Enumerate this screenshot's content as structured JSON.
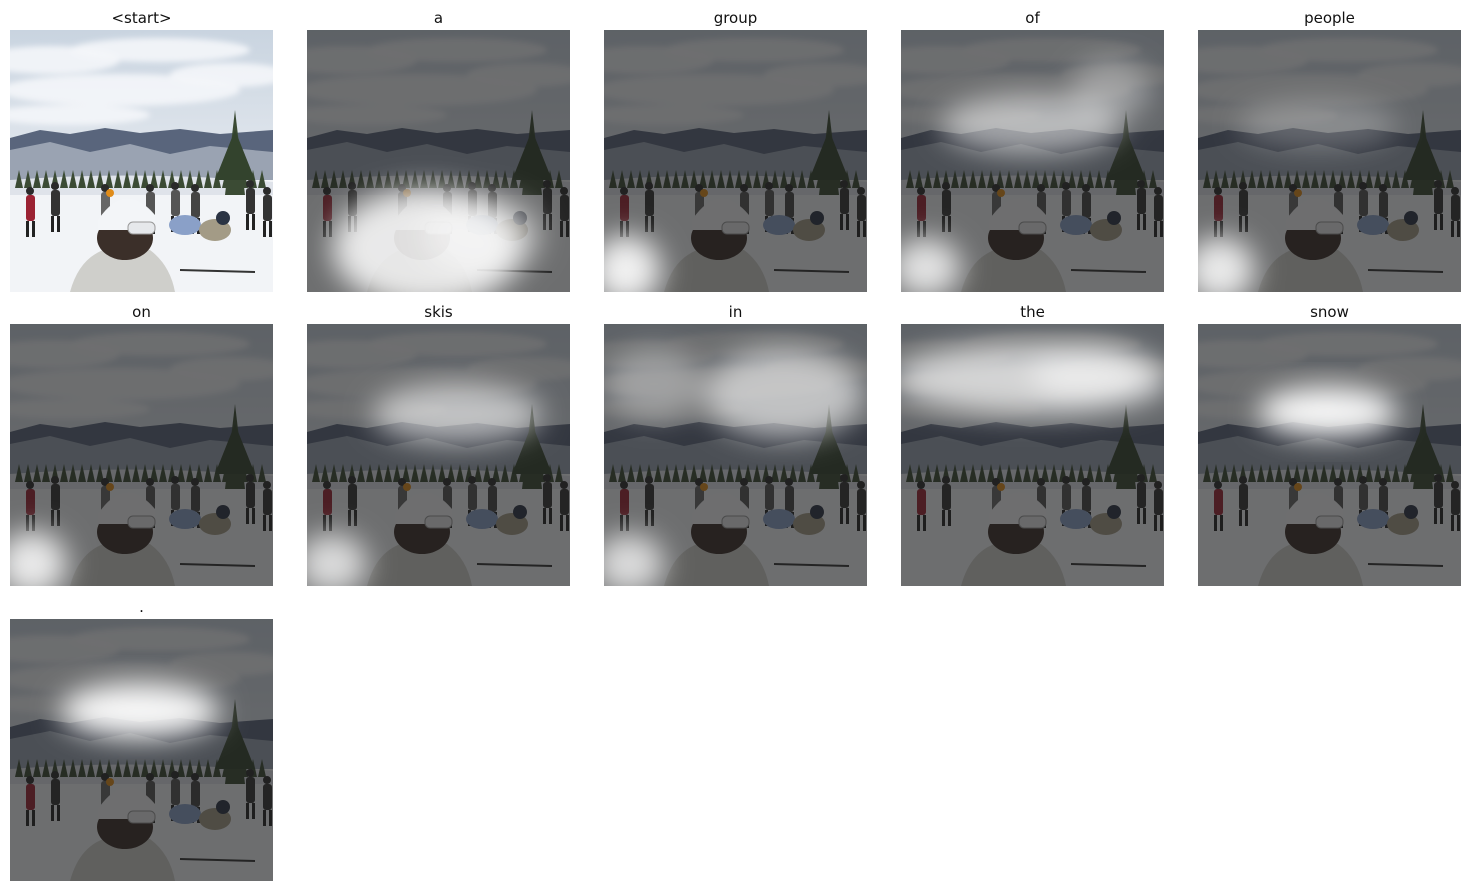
{
  "panels": [
    {
      "word": "<start>",
      "attention": null
    },
    {
      "word": "a",
      "attention": "lower-left, around woman's helmet"
    },
    {
      "word": "group",
      "attention": "bottom-left corner"
    },
    {
      "word": "of",
      "attention": "sky center and bottom-left"
    },
    {
      "word": "people",
      "attention": "bottom-left corner, faint sky"
    },
    {
      "word": "on",
      "attention": "bottom-left corner"
    },
    {
      "word": "skis",
      "attention": "sky center and bottom-left"
    },
    {
      "word": "in",
      "attention": "sky right and bottom-left"
    },
    {
      "word": "the",
      "attention": "upper sky band"
    },
    {
      "word": "snow",
      "attention": "center sky near horizon"
    },
    {
      "word": ".",
      "attention": "center sky near horizon"
    }
  ],
  "colors": {
    "sky": "#dfe5ec",
    "cloud": "#f4f6f9",
    "mountain": "#59657c",
    "snow": "#f2f4f7",
    "tree": "#3b4b34",
    "jacket_red": "#9b2233",
    "coat_gray": "#cfcfcb",
    "helmet": "#f3f5f8"
  }
}
